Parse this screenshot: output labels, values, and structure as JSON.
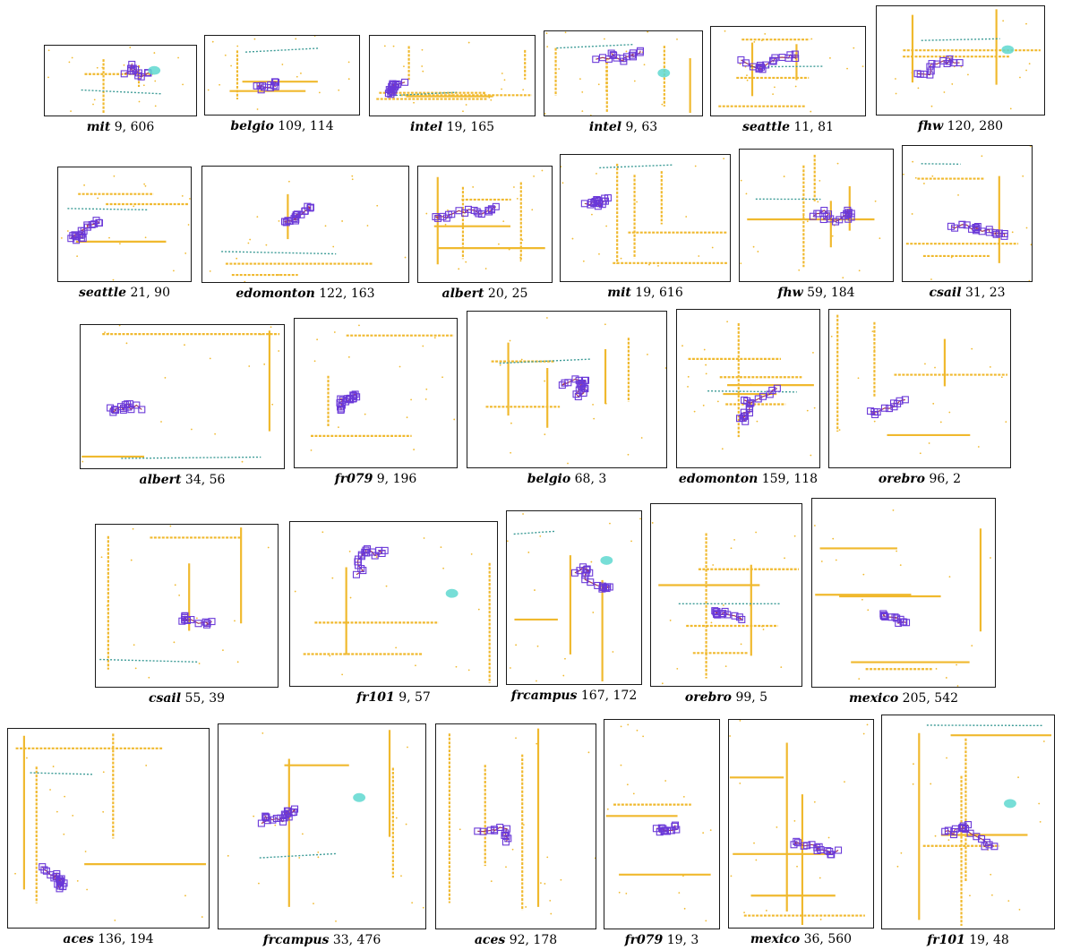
{
  "colors": {
    "wall": "#f0b92e",
    "sensor": "#3a9a95",
    "pose": "#6a38d8",
    "pose_edge": "#a03a5a",
    "candidate": "#5fd8d0"
  },
  "panels": [
    {
      "name": "mit",
      "id": "9, 606"
    },
    {
      "name": "belgio",
      "id": "109, 114"
    },
    {
      "name": "intel",
      "id": "19, 165"
    },
    {
      "name": "intel",
      "id": "9, 63"
    },
    {
      "name": "seattle",
      "id": "11, 81"
    },
    {
      "name": "fhw",
      "id": "120, 280"
    },
    {
      "name": "seattle",
      "id": "21, 90"
    },
    {
      "name": "edomonton",
      "id": "122, 163"
    },
    {
      "name": "albert",
      "id": "20, 25"
    },
    {
      "name": "mit",
      "id": "19, 616"
    },
    {
      "name": "fhw",
      "id": "59, 184"
    },
    {
      "name": "csail",
      "id": "31, 23"
    },
    {
      "name": "albert",
      "id": "34, 56"
    },
    {
      "name": "fr079",
      "id": "9, 196"
    },
    {
      "name": "belgio",
      "id": "68, 3"
    },
    {
      "name": "edomonton",
      "id": "159, 118"
    },
    {
      "name": "orebro",
      "id": "96, 2"
    },
    {
      "name": "csail",
      "id": "55, 39"
    },
    {
      "name": "fr101",
      "id": "9, 57"
    },
    {
      "name": "frcampus",
      "id": "167, 172"
    },
    {
      "name": "orebro",
      "id": "99, 5"
    },
    {
      "name": "mexico",
      "id": "205, 542"
    },
    {
      "name": "aces",
      "id": "136, 194"
    },
    {
      "name": "frcampus",
      "id": "33, 476"
    },
    {
      "name": "aces",
      "id": "92, 178"
    },
    {
      "name": "fr079",
      "id": "19, 3"
    },
    {
      "name": "mexico",
      "id": "36, 560"
    },
    {
      "name": "fr101",
      "id": "19, 48"
    }
  ]
}
